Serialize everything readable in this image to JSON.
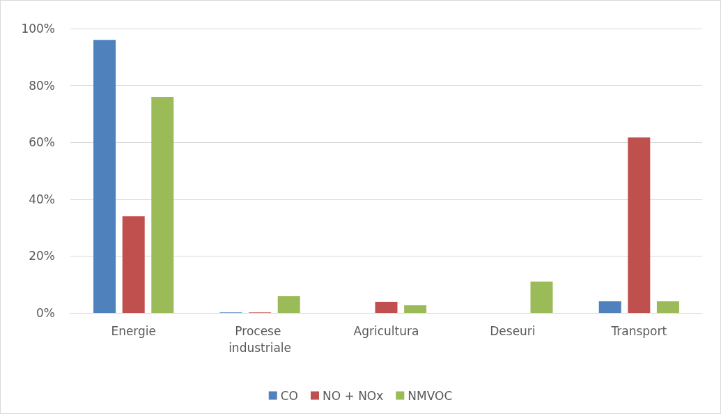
{
  "chart_data": {
    "type": "bar",
    "categories": [
      "Energie",
      "Procese industriale",
      "Agricultura",
      "Deseuri",
      "Transport"
    ],
    "series": [
      {
        "name": "CO",
        "color": "#4f81bd",
        "values": [
          96,
          0.2,
          0,
          0,
          4.1
        ]
      },
      {
        "name": "NO + NOx",
        "color": "#c0504d",
        "values": [
          34,
          0.2,
          3.9,
          0,
          61.7
        ]
      },
      {
        "name": "NMVOC",
        "color": "#9bbb59",
        "values": [
          76,
          5.9,
          2.7,
          11,
          4.1
        ]
      }
    ],
    "ylim": [
      0,
      100
    ],
    "yticks": [
      {
        "value": 0,
        "label": "0%"
      },
      {
        "value": 20,
        "label": "20%"
      },
      {
        "value": 40,
        "label": "40%"
      },
      {
        "value": 60,
        "label": "60%"
      },
      {
        "value": 80,
        "label": "80%"
      },
      {
        "value": 100,
        "label": "100%"
      }
    ],
    "grid": "y",
    "legend": "bottom"
  }
}
